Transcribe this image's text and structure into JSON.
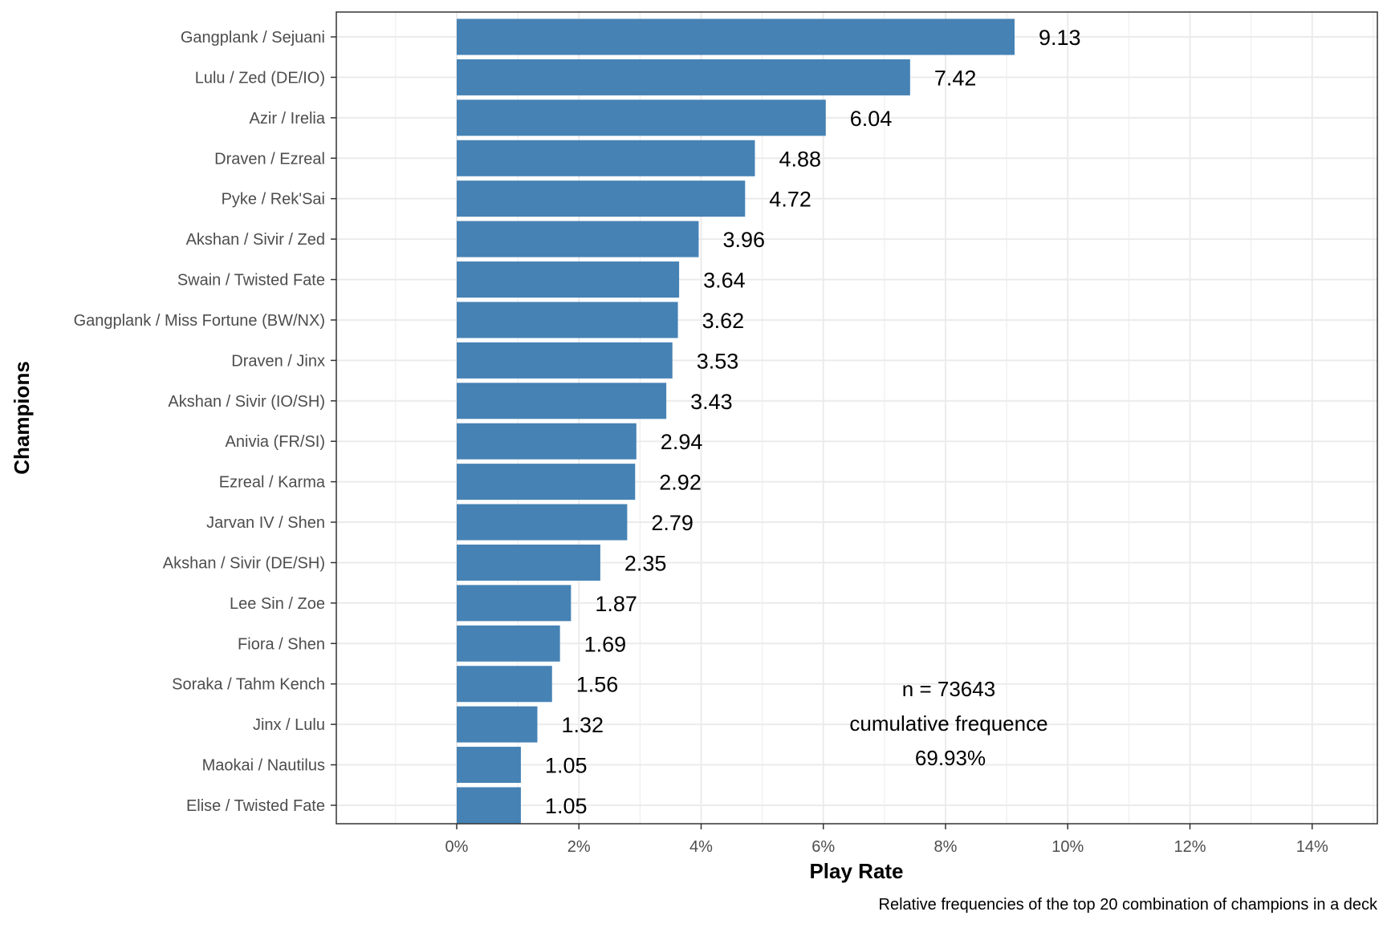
{
  "chart_data": {
    "type": "bar",
    "orientation": "horizontal",
    "categories": [
      "Gangplank / Sejuani",
      "Lulu / Zed (DE/IO)",
      "Azir / Irelia",
      "Draven / Ezreal",
      "Pyke / Rek'Sai",
      "Akshan / Sivir / Zed",
      "Swain / Twisted Fate",
      "Gangplank / Miss Fortune (BW/NX)",
      "Draven / Jinx",
      "Akshan / Sivir (IO/SH)",
      "Anivia (FR/SI)",
      "Ezreal / Karma",
      "Jarvan IV / Shen",
      "Akshan / Sivir (DE/SH)",
      "Lee Sin / Zoe",
      "Fiora / Shen",
      "Soraka / Tahm Kench",
      "Jinx / Lulu",
      "Maokai / Nautilus",
      "Elise / Twisted Fate"
    ],
    "values": [
      9.13,
      7.42,
      6.04,
      4.88,
      4.72,
      3.96,
      3.64,
      3.62,
      3.53,
      3.43,
      2.94,
      2.92,
      2.79,
      2.35,
      1.87,
      1.69,
      1.56,
      1.32,
      1.05,
      1.05
    ],
    "value_labels": [
      "9.13",
      "7.42",
      "6.04",
      "4.88",
      "4.72",
      "3.96",
      "3.64",
      "3.62",
      "3.53",
      "3.43",
      "2.94",
      "2.92",
      "2.79",
      "2.35",
      "1.87",
      "1.69",
      "1.56",
      "1.32",
      "1.05",
      "1.05"
    ],
    "xlabel": "Play Rate",
    "ylabel": "Champions",
    "xlim": [
      -2,
      15
    ],
    "xticks": [
      0,
      2,
      4,
      6,
      8,
      10,
      12,
      14
    ],
    "xtick_labels": [
      "0%",
      "2%",
      "4%",
      "6%",
      "8%",
      "10%",
      "12%",
      "14%"
    ],
    "caption": "Relative frequencies of the top 20 combination of champions in a deck",
    "annotation": [
      "n = 73643",
      "cumulative frequence",
      "69.93%"
    ],
    "grid": true,
    "bar_color": "#4682b4",
    "grid_color": "#ebebeb"
  }
}
